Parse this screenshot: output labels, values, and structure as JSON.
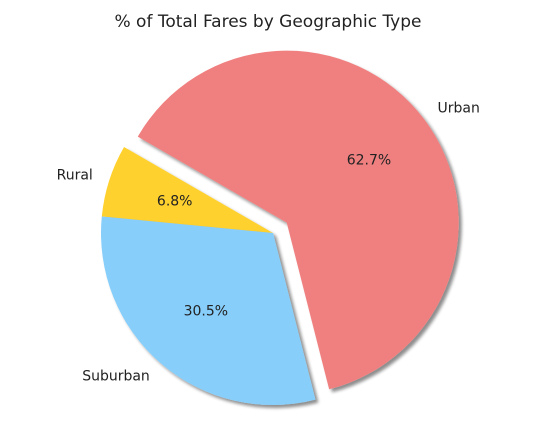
{
  "chart_data": {
    "type": "pie",
    "title": "% of Total Fares by Geographic Type",
    "slices": [
      {
        "label": "Rural",
        "value": 6.8,
        "pct_label": "6.8%",
        "color": "#FFD12E",
        "exploded": false
      },
      {
        "label": "Suburban",
        "value": 30.5,
        "pct_label": "30.5%",
        "color": "#87CEFA",
        "exploded": false
      },
      {
        "label": "Urban",
        "value": 62.7,
        "pct_label": "62.7%",
        "color": "#F08080",
        "exploded": true
      }
    ],
    "start_angle_deg": 150,
    "counterclock": true,
    "shadow": true
  }
}
